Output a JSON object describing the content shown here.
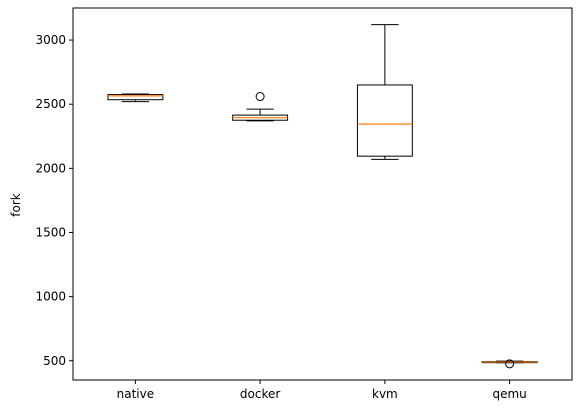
{
  "chart_data": {
    "type": "box",
    "title": "",
    "xlabel": "",
    "ylabel": "fork",
    "ylim": [
      350,
      3250
    ],
    "yticks": [
      500,
      1000,
      1500,
      2000,
      2500,
      3000
    ],
    "grid": false,
    "colors": {
      "box": "#000000",
      "median": "#ff7f0e",
      "frame": "#000000"
    },
    "categories": [
      "native",
      "docker",
      "kvm",
      "qemu"
    ],
    "boxes": [
      {
        "category": "native",
        "whislo": 2520,
        "q1": 2535,
        "med": 2565,
        "q3": 2575,
        "whishi": 2580,
        "fliers": []
      },
      {
        "category": "docker",
        "whislo": 2370,
        "q1": 2375,
        "med": 2395,
        "q3": 2415,
        "whishi": 2462,
        "fliers": [
          2560
        ]
      },
      {
        "category": "kvm",
        "whislo": 2070,
        "q1": 2095,
        "med": 2345,
        "q3": 2650,
        "whishi": 3120,
        "fliers": []
      },
      {
        "category": "qemu",
        "whislo": 484,
        "q1": 487,
        "med": 490,
        "q3": 493,
        "whishi": 497,
        "fliers": [
          476
        ]
      }
    ]
  }
}
